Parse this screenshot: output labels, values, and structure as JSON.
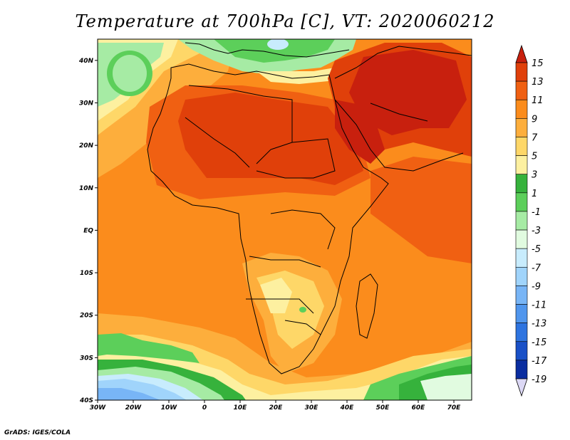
{
  "title": "Temperature at 700hPa [C], VT: 2020060212",
  "credit": "GrADS: IGES/COLA",
  "map": {
    "lon_ticks": [
      "30W",
      "20W",
      "10W",
      "0",
      "10E",
      "20E",
      "30E",
      "40E",
      "50E",
      "60E",
      "70E"
    ],
    "lat_ticks": [
      "40N",
      "30N",
      "20N",
      "10N",
      "EQ",
      "10S",
      "20S",
      "30S",
      "40S"
    ],
    "lon_range": [
      -30,
      75
    ],
    "lat_range": [
      -40,
      45
    ]
  },
  "colorbar": {
    "labels": [
      "15",
      "13",
      "11",
      "9",
      "7",
      "5",
      "3",
      "1",
      "-1",
      "-3",
      "-5",
      "-7",
      "-9",
      "-11",
      "-13",
      "-15",
      "-17",
      "-19"
    ],
    "colors": [
      "#c8200e",
      "#e0400a",
      "#f06012",
      "#fb8c1c",
      "#fdae3c",
      "#fed768",
      "#fdf0a0",
      "#36b23c",
      "#5ccf5a",
      "#a6eba4",
      "#e1fbe0",
      "#c8ecfd",
      "#a0d4fb",
      "#78b5f6",
      "#5096ed",
      "#2e74e0",
      "#1950c7",
      "#0a2da0",
      "#061b78"
    ]
  }
}
